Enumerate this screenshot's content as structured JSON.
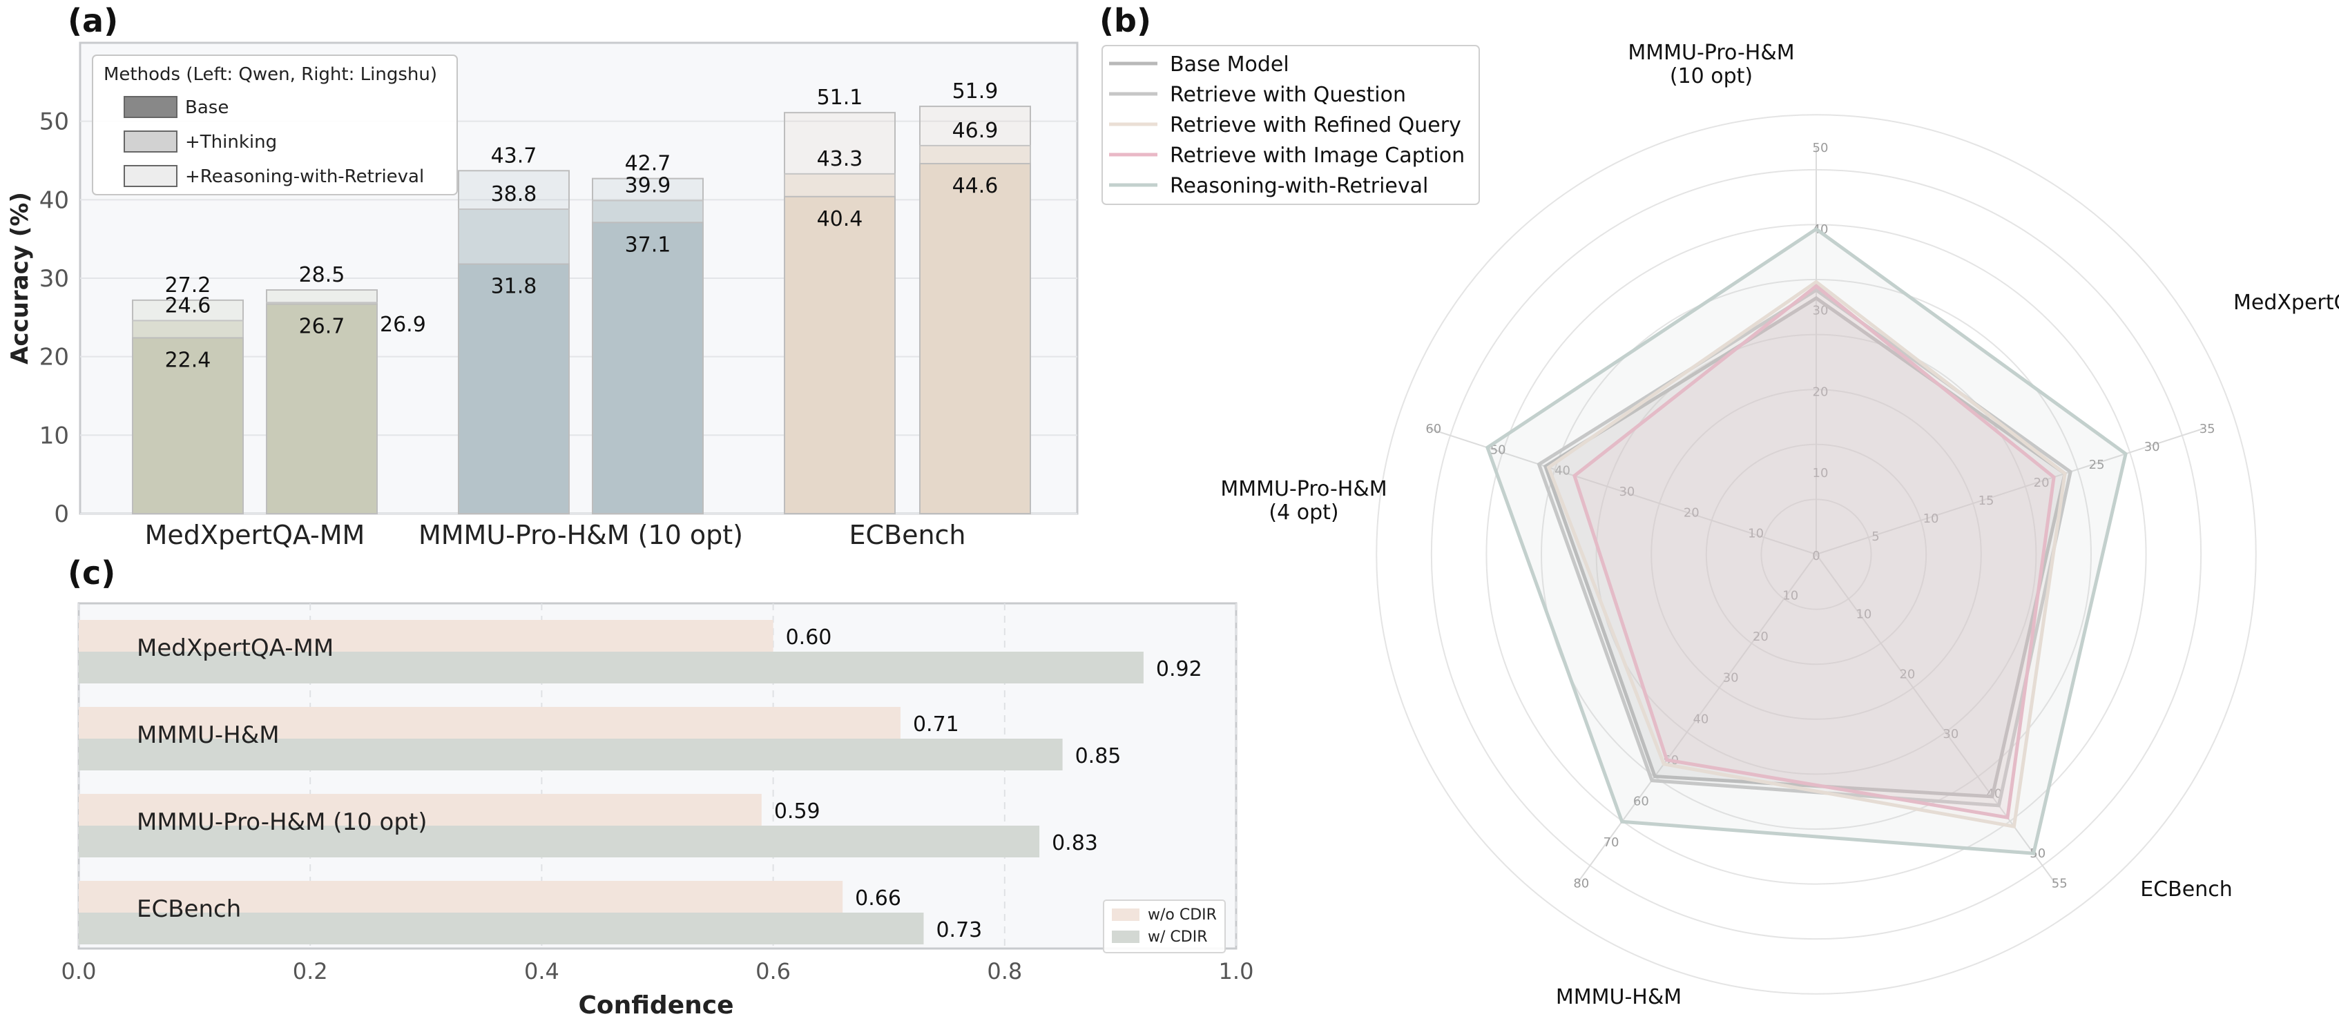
{
  "chart_data": [
    {
      "panel": "(a)",
      "type": "bar",
      "subtype": "stacked-overlay",
      "ylabel": "Accuracy (%)",
      "ylim": [
        0,
        60
      ],
      "yticks": [
        "0",
        "10",
        "20",
        "30",
        "40",
        "50"
      ],
      "categories": [
        "MedXpertQA-MM",
        "MMMU-Pro-H&M (10 opt)",
        "ECBench"
      ],
      "legend": {
        "title": "Methods (Left: Qwen, Right: Lingshu)",
        "position": "top-left",
        "entries": [
          "Base",
          "+Thinking",
          "+Reasoning-with-Retrieval"
        ]
      },
      "bars": [
        {
          "category": "MedXpertQA-MM",
          "model": "Qwen",
          "color": "#c9cbb8",
          "base": 22.4,
          "thinking": 24.6,
          "rwr": 27.2,
          "labels": [
            "22.4",
            "24.6",
            "27.2"
          ]
        },
        {
          "category": "MedXpertQA-MM",
          "model": "Lingshu",
          "color": "#c9cbb8",
          "base": 26.7,
          "thinking": 26.9,
          "rwr": 28.5,
          "labels": [
            "26.7",
            "26.9",
            "28.5"
          ]
        },
        {
          "category": "MMMU-Pro-H&M (10 opt)",
          "model": "Qwen",
          "color": "#b5c3c9",
          "base": 31.8,
          "thinking": 38.8,
          "rwr": 43.7,
          "labels": [
            "31.8",
            "38.8",
            "43.7"
          ]
        },
        {
          "category": "MMMU-Pro-H&M (10 opt)",
          "model": "Lingshu",
          "color": "#b5c3c9",
          "base": 37.1,
          "thinking": 39.9,
          "rwr": 42.7,
          "labels": [
            "37.1",
            "39.9",
            "42.7"
          ]
        },
        {
          "category": "ECBench",
          "model": "Qwen",
          "color": "#e5d8ca",
          "base": 40.4,
          "thinking": 43.3,
          "rwr": 51.1,
          "labels": [
            "40.4",
            "43.3",
            "51.1"
          ]
        },
        {
          "category": "ECBench",
          "model": "Lingshu",
          "color": "#e5d8ca",
          "base": 44.6,
          "thinking": 46.9,
          "rwr": 51.9,
          "labels": [
            "44.6",
            "46.9",
            "51.9"
          ]
        }
      ]
    },
    {
      "panel": "(b)",
      "type": "radar",
      "axes": [
        {
          "label": "MMMU-Pro-H&M\n(10 opt)",
          "max": 50,
          "ticks": [
            "10",
            "20",
            "30",
            "40",
            "50"
          ]
        },
        {
          "label": "MedXpertQA-MM",
          "max": 35,
          "ticks": [
            "5",
            "10",
            "15",
            "20",
            "25",
            "30",
            "35"
          ]
        },
        {
          "label": "ECBench",
          "max": 55,
          "ticks": [
            "10",
            "20",
            "30",
            "40",
            "50",
            "55"
          ]
        },
        {
          "label": "MMMU-H&M",
          "max": 80,
          "ticks": [
            "10",
            "20",
            "30",
            "40",
            "50",
            "60",
            "70",
            "80"
          ]
        },
        {
          "label": "MMMU-Pro-H&M\n(4 opt)",
          "max": 60,
          "ticks": [
            "10",
            "20",
            "30",
            "40",
            "50",
            "60"
          ]
        }
      ],
      "center_label": "0",
      "series": [
        {
          "name": "Base Model",
          "color": "#b8b8b8",
          "values": [
            31.5,
            22.5,
            40.5,
            54,
            42
          ]
        },
        {
          "name": "Retrieve with Question",
          "color": "#c6c6c6",
          "values": [
            32.5,
            23,
            42,
            55,
            43
          ]
        },
        {
          "name": "Retrieve with Refined Query",
          "color": "#eadfd5",
          "values": [
            33.5,
            22.5,
            45.5,
            51,
            41.5
          ]
        },
        {
          "name": "Retrieve with Image Caption",
          "color": "#e9b8c6",
          "values": [
            33,
            21.5,
            44,
            50,
            37.5
          ]
        },
        {
          "name": "Reasoning-with-Retrieval",
          "color": "#c3d0cd",
          "values": [
            40,
            28,
            50,
            65,
            51
          ]
        }
      ],
      "legend_position": "top-left"
    },
    {
      "panel": "(c)",
      "type": "bar",
      "orientation": "horizontal",
      "xlabel": "Confidence",
      "xlim": [
        0,
        1
      ],
      "xticks": [
        "0.0",
        "0.2",
        "0.4",
        "0.6",
        "0.8",
        "1.0"
      ],
      "categories": [
        "MedXpertQA-MM",
        "MMMU-H&M",
        "MMMU-Pro-H&M (10 opt)",
        "ECBench"
      ],
      "series": [
        {
          "name": "w/o CDIR",
          "color": "#f2e4dc",
          "values": [
            0.6,
            0.71,
            0.59,
            0.66
          ],
          "labels": [
            "0.60",
            "0.71",
            "0.59",
            "0.66"
          ]
        },
        {
          "name": "w/ CDIR",
          "color": "#d3d8d3",
          "values": [
            0.92,
            0.85,
            0.83,
            0.73
          ],
          "labels": [
            "0.92",
            "0.85",
            "0.83",
            "0.73"
          ]
        }
      ],
      "legend_position": "bottom-right"
    }
  ]
}
